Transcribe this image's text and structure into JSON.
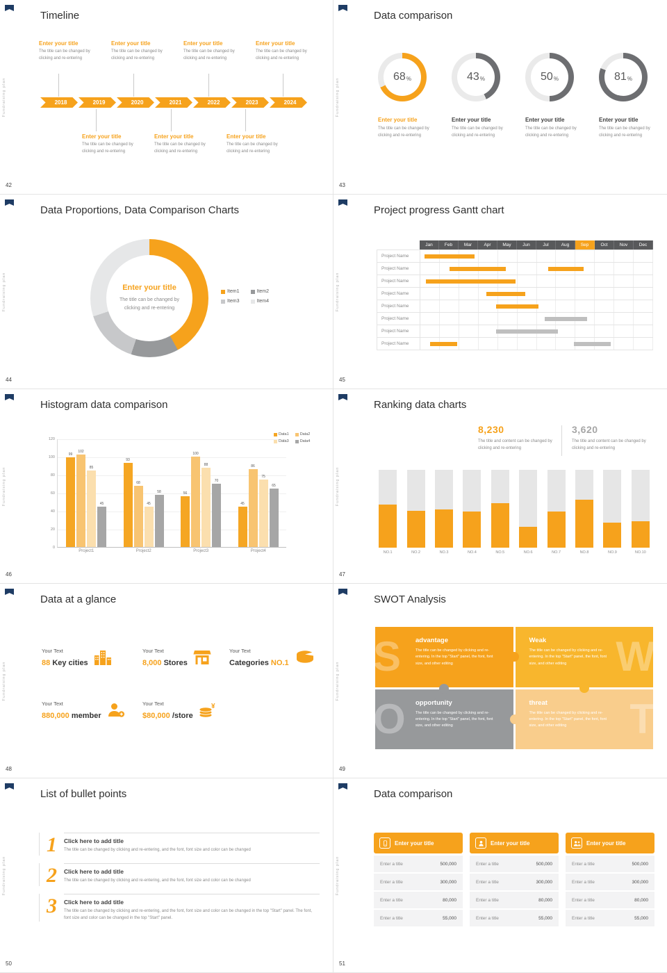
{
  "common": {
    "side_label": "Fundraising plan",
    "accent": "#F6A21C"
  },
  "slides": {
    "timeline": {
      "number": "42",
      "title": "Timeline",
      "years": [
        "2018",
        "2019",
        "2020",
        "2021",
        "2022",
        "2023",
        "2024"
      ],
      "top_items": [
        {
          "title": "Enter your title",
          "desc": "The title can be changed by clicking and re-entering"
        },
        {
          "title": "Enter your title",
          "desc": "The title can be changed by clicking and re-entering"
        },
        {
          "title": "Enter your title",
          "desc": "The title can be changed by clicking and re-entering"
        },
        {
          "title": "Enter your title",
          "desc": "The title can be changed by clicking and re-entering"
        }
      ],
      "bottom_items": [
        {
          "title": "Enter your title",
          "desc": "The title can be changed by clicking and re-entering"
        },
        {
          "title": "Enter your title",
          "desc": "The title can be changed by clicking and re-entering"
        },
        {
          "title": "Enter your title",
          "desc": "The title can be changed by clicking and re-entering"
        }
      ]
    },
    "data_comparison": {
      "number": "43",
      "title": "Data comparison",
      "items": [
        {
          "title": "Enter your title",
          "desc": "The title can be changed by clicking and re-entering",
          "accent": "#F6A21C",
          "title_color": "#F6A21C"
        },
        {
          "title": "Enter your title",
          "desc": "The title can be changed by clicking and re-entering",
          "accent": "#6d6e71",
          "title_color": "#404040"
        },
        {
          "title": "Enter your title",
          "desc": "The title can be changed by clicking and re-entering",
          "accent": "#6d6e71",
          "title_color": "#404040"
        },
        {
          "title": "Enter your title",
          "desc": "The title can be changed by clicking and re-entering",
          "accent": "#6d6e71",
          "title_color": "#404040"
        }
      ]
    },
    "proportions": {
      "number": "44",
      "title": "Data Proportions, Data Comparison Charts",
      "center_title": "Enter your title",
      "center_desc": "The title can be changed by clicking and re-entering"
    },
    "gantt": {
      "number": "45",
      "title": "Project progress Gantt chart"
    },
    "histogram": {
      "number": "46",
      "title": "Histogram data comparison"
    },
    "ranking": {
      "number": "47",
      "title": "Ranking data charts",
      "desc": "The title and content can be changed by clicking and re-entering"
    },
    "glance": {
      "number": "48",
      "title": "Data at a glance",
      "stats": [
        {
          "label": "Your Text",
          "value": "88",
          "unit": "Key cities",
          "icon": "city",
          "unit_first": false
        },
        {
          "label": "Your Text",
          "value": "8,000",
          "unit": "Stores",
          "icon": "store",
          "unit_first": false
        },
        {
          "label": "Your Text",
          "value": "NO.1",
          "unit": "Categories",
          "icon": "categories",
          "unit_first": true
        },
        {
          "label": "Your Text",
          "value": "880,000",
          "unit": "member",
          "icon": "member",
          "unit_first": false
        },
        {
          "label": "Your Text",
          "value": "$80,000",
          "unit": "/store",
          "icon": "coins",
          "unit_first": false
        }
      ]
    },
    "swot": {
      "number": "49",
      "title": "SWOT Analysis",
      "blocks": [
        {
          "letter": "S",
          "heading": "advantage",
          "desc": "The title can be changed by clicking and re-entering. In the top \"Start\" panel, the font, font size, and other editing",
          "bg": "#F6A21C",
          "letter_side": "left"
        },
        {
          "letter": "W",
          "heading": "Weak",
          "desc": "The title can be changed by clicking and re-entering. In the top \"Start\" panel, the font, font size, and other editing",
          "bg": "#F8B62D",
          "letter_side": "right"
        },
        {
          "letter": "O",
          "heading": "opportunity",
          "desc": "The title can be changed by clicking and re-entering. In the top \"Start\" panel, the font, font size, and other editing",
          "bg": "#97999B",
          "letter_side": "left"
        },
        {
          "letter": "T",
          "heading": "threat",
          "desc": "The title can be changed by clicking and re-entering. In the top \"Start\" panel, the font, font size, and other editing",
          "bg": "#F9CD8C",
          "letter_side": "right"
        }
      ]
    },
    "bullets": {
      "number": "50",
      "title": "List of bullet points",
      "items": [
        {
          "num": "1",
          "title": "Click here to add title",
          "desc": "The title can be changed by clicking and re-entering, and the font, font size and color can be changed"
        },
        {
          "num": "2",
          "title": "Click here to add title",
          "desc": "The title can be changed by clicking and re-entering, and the font, font size and color can be changed"
        },
        {
          "num": "3",
          "title": "Click here to add title",
          "desc": "The title can be changed by clicking and re-entering, and the font, font size and color can be changed in the top \"Start\" panel. The font, font size and color can be changed in the top \"Start\" panel."
        }
      ]
    },
    "tables": {
      "number": "51",
      "title": "Data comparison"
    }
  },
  "chart_data": [
    {
      "id": "donut-percentages",
      "type": "pie",
      "title": "Data comparison",
      "labels": [
        "Enter your title",
        "Enter your title",
        "Enter your title",
        "Enter your title"
      ],
      "values": [
        68,
        43,
        50,
        81
      ],
      "unit": "%"
    },
    {
      "id": "proportions-donut",
      "type": "pie",
      "title": "Enter your title",
      "labels": [
        "Item1",
        "Item2",
        "Item3",
        "Item4"
      ],
      "values": [
        42,
        13,
        15,
        30
      ],
      "colors": [
        "#F6A21C",
        "#97999b",
        "#c7c8ca",
        "#e6e7e8"
      ],
      "legend_position": "right"
    },
    {
      "id": "gantt",
      "type": "table",
      "columns": [
        "Jan",
        "Feb",
        "Mar",
        "Apr",
        "May",
        "Jun",
        "Jul",
        "Aug",
        "Sep",
        "Oct",
        "Nov",
        "Dec"
      ],
      "highlight_column": "Sep",
      "rows": [
        {
          "label": "Project Name",
          "bars": [
            {
              "start": 0.2,
              "length": 2.6,
              "color": "#F6A21C"
            }
          ]
        },
        {
          "label": "Project Name",
          "bars": [
            {
              "start": 1.5,
              "length": 2.9,
              "color": "#F6A21C"
            },
            {
              "start": 6.6,
              "length": 1.8,
              "color": "#F6A21C"
            }
          ]
        },
        {
          "label": "Project Name",
          "bars": [
            {
              "start": 0.3,
              "length": 4.6,
              "color": "#F6A21C"
            }
          ]
        },
        {
          "label": "Project Name",
          "bars": [
            {
              "start": 3.4,
              "length": 2.0,
              "color": "#F6A21C"
            }
          ]
        },
        {
          "label": "Project Name",
          "bars": [
            {
              "start": 3.9,
              "length": 2.2,
              "color": "#F6A21C"
            }
          ]
        },
        {
          "label": "Project Name",
          "bars": [
            {
              "start": 6.4,
              "length": 2.2,
              "color": "#BFBFBF"
            }
          ]
        },
        {
          "label": "Project Name",
          "bars": [
            {
              "start": 3.9,
              "length": 3.2,
              "color": "#BFBFBF"
            }
          ]
        },
        {
          "label": "Project Name",
          "bars": [
            {
              "start": 0.5,
              "length": 1.4,
              "color": "#F6A21C"
            },
            {
              "start": 7.9,
              "length": 1.9,
              "color": "#BFBFBF"
            }
          ]
        }
      ]
    },
    {
      "id": "histogram",
      "type": "bar",
      "categories": [
        "Project1",
        "Project2",
        "Project3",
        "Project4"
      ],
      "series": [
        {
          "name": "Data1",
          "color": "#F5A623",
          "values": [
            99,
            93,
            56,
            45
          ]
        },
        {
          "name": "Data2",
          "color": "#F8C471",
          "values": [
            102,
            68,
            100,
            86
          ]
        },
        {
          "name": "Data3",
          "color": "#FBDFAE",
          "values": [
            85,
            45,
            88,
            75
          ]
        },
        {
          "name": "Data4",
          "color": "#A6A6A6",
          "values": [
            45,
            58,
            70,
            65
          ]
        }
      ],
      "ylim": [
        0,
        120
      ],
      "yticks": [
        0,
        20,
        40,
        60,
        80,
        100,
        120
      ],
      "grid": true,
      "legend_position": "top-right"
    },
    {
      "id": "ranking",
      "type": "bar",
      "categories": [
        "NO.1",
        "NO.2",
        "NO.3",
        "NO.4",
        "NO.5",
        "NO.6",
        "NO.7",
        "NO.8",
        "NO.9",
        "NO.10"
      ],
      "values": [
        55,
        47,
        49,
        46,
        57,
        27,
        46,
        62,
        32,
        34
      ],
      "ylim": [
        0,
        100
      ],
      "bar_color": "#F6A21C",
      "track_color": "#E6E6E6",
      "callouts": [
        {
          "value": "8,230",
          "color": "#F6A21C"
        },
        {
          "value": "3,620",
          "color": "#A6A6A6"
        }
      ]
    },
    {
      "id": "comparison-tables",
      "type": "table",
      "tables": [
        {
          "title": "Enter your title",
          "icon": "device",
          "rows": [
            [
              "Enter a title",
              "500,000"
            ],
            [
              "Enter a title",
              "300,000"
            ],
            [
              "Enter a title",
              "80,000"
            ],
            [
              "Enter a title",
              "55,000"
            ]
          ]
        },
        {
          "title": "Enter your title",
          "icon": "person",
          "rows": [
            [
              "Enter a title",
              "500,000"
            ],
            [
              "Enter a title",
              "300,000"
            ],
            [
              "Enter a title",
              "80,000"
            ],
            [
              "Enter a title",
              "55,000"
            ]
          ]
        },
        {
          "title": "Enter your title",
          "icon": "people",
          "rows": [
            [
              "Enter a title",
              "500,000"
            ],
            [
              "Enter a title",
              "300,000"
            ],
            [
              "Enter a title",
              "80,000"
            ],
            [
              "Enter a title",
              "55,000"
            ]
          ]
        }
      ]
    }
  ]
}
